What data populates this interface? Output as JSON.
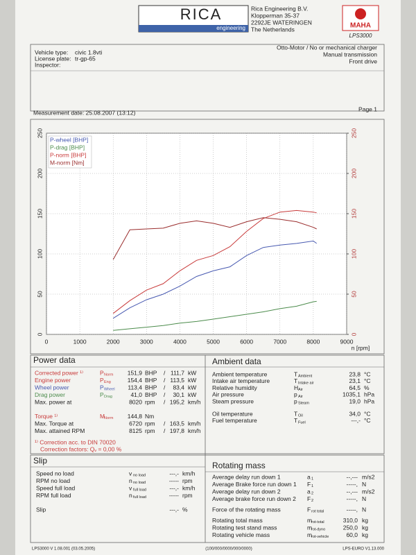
{
  "header": {
    "logo": "RICA",
    "logo_sub": "engineering",
    "address": [
      "Rica Engineering B.V.",
      "Klopperman 35-37",
      "2292JE WATERINGEN",
      "The Netherlands"
    ],
    "brand": "MAHA",
    "model": "LPS3000"
  },
  "vehicle": {
    "left": [
      [
        "Vehicle type:",
        "civic 1.8vti"
      ],
      [
        "License plate:",
        "tr-gp-65"
      ],
      [
        "Inspector:"
      ]
    ],
    "right": [
      "Otto-Motor / No or mechanical charger",
      "Manual transmission",
      "Front drive"
    ]
  },
  "measurement": {
    "date": "Measurement date: 25.08.2007 (13:12)",
    "page": "Page 1"
  },
  "chart_data": {
    "type": "line",
    "x_label": "n [rpm]",
    "x": [
      2000,
      2500,
      3000,
      3500,
      4000,
      4500,
      5000,
      5500,
      6000,
      6500,
      7000,
      7500,
      8000,
      8100
    ],
    "xlim": [
      0,
      9000
    ],
    "xticks": [
      0,
      1000,
      2000,
      3000,
      4000,
      5000,
      6000,
      7000,
      8000,
      9000
    ],
    "ylim": [
      0,
      250
    ],
    "yticks": [
      0,
      50,
      100,
      150,
      200,
      250
    ],
    "y2lim": [
      0,
      250
    ],
    "y2ticks": [
      0,
      50,
      100,
      150,
      200,
      250
    ],
    "grid": true,
    "legend": "upper left",
    "series": [
      {
        "name": "P-wheel [BHP]",
        "color": "#4658b0",
        "values": [
          20,
          33,
          43,
          50,
          60,
          72,
          79,
          84,
          98,
          108,
          111,
          113,
          116,
          113
        ]
      },
      {
        "name": "P-drag [BHP]",
        "color": "#4b8b4b",
        "values": [
          5,
          7,
          9,
          11,
          14,
          16,
          19,
          22,
          25,
          28,
          32,
          35,
          40.5,
          41
        ]
      },
      {
        "name": "P-norm [BHP]",
        "color": "#c83a3a",
        "values": [
          26,
          42,
          55,
          63,
          79,
          92,
          98,
          109,
          128,
          144,
          152,
          154,
          152,
          151
        ]
      },
      {
        "name": "M-norm [Nm]",
        "color": "#9a2c2c",
        "axis": "y2",
        "values": [
          93,
          130,
          131,
          132,
          138,
          141,
          138,
          133,
          140,
          145,
          143,
          140,
          133,
          131
        ]
      }
    ]
  },
  "power_data": {
    "title": "Power data",
    "groups": [
      [
        {
          "label": "Corrected power ¹⁾",
          "color": "#c83a3a",
          "sym": "P",
          "sub": "Norm",
          "val": "151,9",
          "unit": "BHP",
          "sep": "/",
          "val2": "111,7",
          "unit2": "kW"
        },
        {
          "label": "Engine power",
          "color": "#c83a3a",
          "sym": "P",
          "sub": "Eng",
          "val": "154,4",
          "unit": "BHP",
          "sep": "/",
          "val2": "113,5",
          "unit2": "kW"
        },
        {
          "label": "Wheel power",
          "color": "#4658b0",
          "sym": "P",
          "sub": "Wheel",
          "val": "113,4",
          "unit": "BHP",
          "sep": "/",
          "val2": "83,4",
          "unit2": "kW"
        },
        {
          "label": "Drag power",
          "color": "#4b8b4b",
          "sym": "P",
          "sub": "Drag",
          "val": "41,0",
          "unit": "BHP",
          "sep": "/",
          "val2": "30,1",
          "unit2": "kW"
        },
        {
          "label": "Max. power at",
          "val": "8020",
          "unit": "rpm",
          "sep": "/",
          "val2": "195,2",
          "unit2": "km/h"
        }
      ],
      [
        {
          "label": "Torque ¹⁾",
          "color": "#c83a3a",
          "sym": "M",
          "sub": "Norm",
          "val": "144,8",
          "unit": "Nm"
        },
        {
          "label": "Max. Torque at",
          "val": "6720",
          "unit": "rpm",
          "sep": "/",
          "val2": "163,5",
          "unit2": "km/h"
        },
        {
          "label": "Max. attained RPM",
          "val": "8125",
          "unit": "rpm",
          "sep": "/",
          "val2": "197,8",
          "unit2": "km/h"
        }
      ]
    ],
    "notes": [
      "¹⁾ Correction acc. to DIN 70020",
      "Correction factors: Qᵥ =  0,00 %"
    ]
  },
  "ambient_data": {
    "title": "Ambient data",
    "groups": [
      [
        {
          "label": "Ambient temperature",
          "sym": "T",
          "sub": "Ambient",
          "val": "23,8",
          "unit": "°C"
        },
        {
          "label": "Intake air temperature",
          "sym": "T",
          "sub": "Intake air",
          "val": "23,1",
          "unit": "°C"
        },
        {
          "label": "Relative humidity",
          "sym": "H",
          "sub": "Air",
          "val": "64,5",
          "unit": "%"
        },
        {
          "label": "Air pressure",
          "sym": "p",
          "sub": "Air",
          "val": "1035,1",
          "unit": "hPa"
        },
        {
          "label": "Steam pressure",
          "sym": "p",
          "sub": "Steam",
          "val": "19,0",
          "unit": "hPa"
        }
      ],
      [
        {
          "label": "Oil temperature",
          "sym": "T",
          "sub": "Oil",
          "val": "34,0",
          "unit": "°C"
        },
        {
          "label": "Fuel temperature",
          "sym": "T",
          "sub": "Fuel",
          "val": "---,-",
          "unit": "°C"
        }
      ]
    ]
  },
  "slip": {
    "title": "Slip",
    "groups": [
      [
        {
          "label": "Speed no load",
          "sym": "v",
          "sub": "no load",
          "val": "---,-",
          "unit": "km/h"
        },
        {
          "label": "RPM no load",
          "sym": "n",
          "sub": "no load",
          "val": "-----",
          "unit": "rpm"
        },
        {
          "label": "Speed full load",
          "sym": "v",
          "sub": "full load",
          "val": "---,-",
          "unit": "km/h"
        },
        {
          "label": "RPM full load",
          "sym": "n",
          "sub": "full load",
          "val": "-----",
          "unit": "rpm"
        }
      ],
      [
        {
          "label": "Slip",
          "val": "---,-",
          "unit": "%"
        }
      ]
    ]
  },
  "rotating_mass": {
    "title": "Rotating mass",
    "groups": [
      [
        {
          "label": "Average delay run down 1",
          "sym": "a",
          "sub": "1",
          "val": "--,---",
          "unit": "m/s2"
        },
        {
          "label": "Average Brake force run down 1",
          "sym": "F",
          "sub": "1",
          "val": "-----,",
          "unit": "N"
        },
        {
          "label": "Average delay run down 2",
          "sym": "a",
          "sub": "2",
          "val": "--,---",
          "unit": "m/s2"
        },
        {
          "label": "Average brake force run down 2",
          "sym": "F",
          "sub": "2",
          "val": "-----,",
          "unit": "N"
        }
      ],
      [
        {
          "label": "Force of the rotating mass",
          "sym": "F",
          "sub": "rot total",
          "val": "-----,",
          "unit": "N"
        }
      ],
      [
        {
          "label": "Rotating total mass",
          "sym": "m",
          "sub": "rot-total",
          "val": "310,0",
          "unit": "kg"
        },
        {
          "label": "Rotating test stand mass",
          "sym": "m",
          "sub": "rot-dyno",
          "val": "250,0",
          "unit": "kg"
        },
        {
          "label": "Rotating vehicle mass",
          "sym": "m",
          "sub": "rot-vehicle",
          "val": "60,0",
          "unit": "kg"
        }
      ]
    ]
  },
  "footer": [
    "LPS3000 V 1.08.001 (03.05.2005)",
    "(100/000/0000/000/0000)",
    "LPS-EURO V1.13.000"
  ]
}
